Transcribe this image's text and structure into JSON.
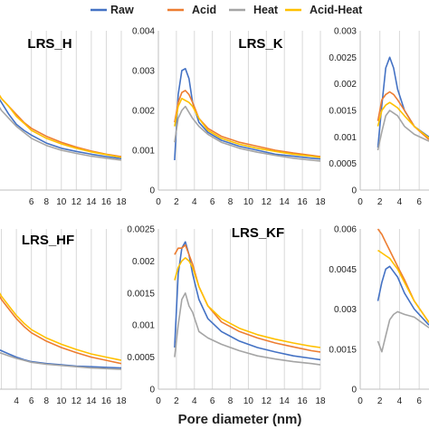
{
  "chart_data": [
    {
      "type": "line",
      "title": "LRS_H",
      "x": [
        0,
        1,
        2,
        3,
        4,
        5,
        6,
        8,
        10,
        12,
        14,
        16,
        18
      ],
      "xlim": [
        0,
        18
      ],
      "ylim": [
        0,
        0.004
      ],
      "x_ticks": [
        "6",
        "8",
        "10",
        "12",
        "14",
        "16",
        "18"
      ],
      "y_ticks": [],
      "grid": "vertical",
      "series": [
        {
          "name": "Raw",
          "color": "#4472C4",
          "values": [
            0.0028,
            0.0025,
            0.0022,
            0.0019,
            0.00165,
            0.0015,
            0.00138,
            0.00118,
            0.00105,
            0.00097,
            0.0009,
            0.00084,
            0.00079
          ]
        },
        {
          "name": "Acid",
          "color": "#ED7D31",
          "values": [
            0.0029,
            0.0026,
            0.0023,
            0.0021,
            0.0019,
            0.0017,
            0.00155,
            0.00135,
            0.0012,
            0.00108,
            0.00098,
            0.0009,
            0.00084
          ]
        },
        {
          "name": "Heat",
          "color": "#A5A5A5",
          "values": [
            0.0026,
            0.0023,
            0.002,
            0.0018,
            0.0016,
            0.00145,
            0.0013,
            0.00112,
            0.001,
            0.00092,
            0.00085,
            0.0008,
            0.00075
          ]
        },
        {
          "name": "Acid-Heat",
          "color": "#FFC000",
          "values": [
            0.0029,
            0.0026,
            0.0023,
            0.0021,
            0.00185,
            0.00168,
            0.0015,
            0.0013,
            0.00116,
            0.00105,
            0.00096,
            0.00089,
            0.00082
          ]
        }
      ]
    },
    {
      "type": "line",
      "title": "LRS_K",
      "x": [
        1.8,
        2.2,
        2.6,
        3.0,
        3.4,
        3.8,
        4.5,
        5.5,
        7,
        9,
        11,
        13,
        15,
        17,
        18
      ],
      "xlim": [
        0,
        18
      ],
      "ylim": [
        0,
        0.004
      ],
      "x_ticks": [
        "0",
        "2",
        "4",
        "6",
        "8",
        "10",
        "12",
        "14",
        "16",
        "18"
      ],
      "y_ticks": [
        "0",
        "0.001",
        "0.002",
        "0.003",
        "0.004"
      ],
      "grid": "vertical",
      "series": [
        {
          "name": "Raw",
          "color": "#4472C4",
          "values": [
            0.00075,
            0.0024,
            0.003,
            0.00305,
            0.0028,
            0.0022,
            0.0017,
            0.00145,
            0.00125,
            0.0011,
            0.001,
            0.0009,
            0.00085,
            0.0008,
            0.00078
          ]
        },
        {
          "name": "Acid",
          "color": "#ED7D31",
          "values": [
            0.0017,
            0.0022,
            0.00245,
            0.0025,
            0.0024,
            0.0022,
            0.0018,
            0.00155,
            0.00135,
            0.0012,
            0.0011,
            0.001,
            0.00093,
            0.00087,
            0.00084
          ]
        },
        {
          "name": "Heat",
          "color": "#A5A5A5",
          "values": [
            0.0012,
            0.0018,
            0.002,
            0.0021,
            0.00195,
            0.0018,
            0.0016,
            0.0014,
            0.0012,
            0.00105,
            0.00095,
            0.00087,
            0.0008,
            0.00075,
            0.00073
          ]
        },
        {
          "name": "Acid-Heat",
          "color": "#FFC000",
          "values": [
            0.0016,
            0.0021,
            0.0023,
            0.00225,
            0.0022,
            0.0021,
            0.0018,
            0.0015,
            0.0013,
            0.00115,
            0.00105,
            0.00097,
            0.0009,
            0.00085,
            0.00082
          ]
        }
      ]
    },
    {
      "type": "line",
      "title": "",
      "x": [
        1.8,
        2.2,
        2.6,
        3.0,
        3.4,
        3.8,
        4.5,
        5.5,
        7
      ],
      "xlim": [
        0,
        7
      ],
      "ylim": [
        0,
        0.003
      ],
      "x_ticks": [
        "0",
        "2",
        "4",
        "6"
      ],
      "y_ticks": [
        "0",
        "0.0005",
        "0.001",
        "0.0015",
        "0.002",
        "0.0025",
        "0.003"
      ],
      "grid": "vertical",
      "series": [
        {
          "name": "Raw",
          "color": "#4472C4",
          "values": [
            0.0008,
            0.0016,
            0.0023,
            0.0025,
            0.0023,
            0.0019,
            0.0015,
            0.0012,
            0.001
          ]
        },
        {
          "name": "Acid",
          "color": "#ED7D31",
          "values": [
            0.0013,
            0.0017,
            0.0018,
            0.00185,
            0.0018,
            0.0017,
            0.0015,
            0.0012,
            0.00095
          ]
        },
        {
          "name": "Heat",
          "color": "#A5A5A5",
          "values": [
            0.00075,
            0.0011,
            0.0014,
            0.0015,
            0.00145,
            0.0014,
            0.0012,
            0.00105,
            0.00092
          ]
        },
        {
          "name": "Acid-Heat",
          "color": "#FFC000",
          "values": [
            0.0012,
            0.0015,
            0.0016,
            0.00165,
            0.0016,
            0.00155,
            0.0014,
            0.0012,
            0.00098
          ]
        }
      ]
    },
    {
      "type": "line",
      "title": "LRS_HF",
      "x": [
        0,
        1,
        2,
        3,
        4,
        5,
        6,
        8,
        10,
        12,
        14,
        16,
        18
      ],
      "xlim": [
        0,
        18
      ],
      "ylim": [
        0,
        0.0025
      ],
      "x_ticks": [
        "2",
        "4",
        "6",
        "8",
        "10",
        "12",
        "14",
        "16",
        "18"
      ],
      "y_ticks": [],
      "grid": "vertical",
      "series": [
        {
          "name": "Raw",
          "color": "#4472C4",
          "values": [
            0.0007,
            0.00065,
            0.0006,
            0.00055,
            0.0005,
            0.00046,
            0.00043,
            0.0004,
            0.00038,
            0.00036,
            0.00035,
            0.00034,
            0.00033
          ]
        },
        {
          "name": "Acid",
          "color": "#ED7D31",
          "values": [
            0.0018,
            0.0016,
            0.0014,
            0.00125,
            0.0011,
            0.00098,
            0.00088,
            0.00075,
            0.00065,
            0.00057,
            0.0005,
            0.00045,
            0.0004
          ]
        },
        {
          "name": "Heat",
          "color": "#A5A5A5",
          "values": [
            0.00065,
            0.0006,
            0.00056,
            0.00052,
            0.00048,
            0.00045,
            0.00042,
            0.00039,
            0.00037,
            0.00035,
            0.00033,
            0.00032,
            0.00031
          ]
        },
        {
          "name": "Acid-Heat",
          "color": "#FFC000",
          "values": [
            0.0019,
            0.00165,
            0.00145,
            0.0013,
            0.00115,
            0.00103,
            0.00093,
            0.0008,
            0.0007,
            0.00062,
            0.00055,
            0.0005,
            0.00045
          ]
        }
      ]
    },
    {
      "type": "line",
      "title": "LRS_KF",
      "x": [
        1.8,
        2.2,
        2.6,
        3.0,
        3.4,
        3.8,
        4.5,
        5.5,
        7,
        9,
        11,
        13,
        15,
        17,
        18
      ],
      "xlim": [
        0,
        18
      ],
      "ylim": [
        0,
        0.0025
      ],
      "x_ticks": [
        "0",
        "2",
        "4",
        "6",
        "8",
        "10",
        "12",
        "14",
        "16",
        "18"
      ],
      "y_ticks": [
        "0",
        "0.0005",
        "0.001",
        "0.0015",
        "0.002",
        "0.0025"
      ],
      "grid": "vertical",
      "series": [
        {
          "name": "Raw",
          "color": "#4472C4",
          "values": [
            0.00065,
            0.0018,
            0.0022,
            0.0023,
            0.0021,
            0.0018,
            0.0014,
            0.0011,
            0.0009,
            0.00075,
            0.00065,
            0.00058,
            0.00052,
            0.00048,
            0.00046
          ]
        },
        {
          "name": "Acid",
          "color": "#ED7D31",
          "values": [
            0.0021,
            0.0022,
            0.0022,
            0.00225,
            0.0021,
            0.00195,
            0.0016,
            0.0013,
            0.00105,
            0.0009,
            0.0008,
            0.00072,
            0.00066,
            0.0006,
            0.00058
          ]
        },
        {
          "name": "Heat",
          "color": "#A5A5A5",
          "values": [
            0.0005,
            0.001,
            0.0014,
            0.0015,
            0.0013,
            0.0012,
            0.0009,
            0.0008,
            0.0007,
            0.0006,
            0.00052,
            0.00047,
            0.00043,
            0.0004,
            0.00038
          ]
        },
        {
          "name": "Acid-Heat",
          "color": "#FFC000",
          "values": [
            0.0017,
            0.0019,
            0.002,
            0.00205,
            0.002,
            0.0019,
            0.0016,
            0.0013,
            0.0011,
            0.00095,
            0.00085,
            0.00078,
            0.00072,
            0.00067,
            0.00065
          ]
        }
      ]
    },
    {
      "type": "line",
      "title": "",
      "x": [
        1.8,
        2.2,
        2.6,
        3.0,
        3.4,
        3.8,
        4.5,
        5.5,
        7
      ],
      "xlim": [
        0,
        7
      ],
      "ylim": [
        0,
        0.006
      ],
      "x_ticks": [
        "0",
        "2",
        "4",
        "6"
      ],
      "y_ticks": [
        "0",
        "0.0015",
        "0.003",
        "0.0045",
        "0.006"
      ],
      "grid": "vertical",
      "series": [
        {
          "name": "Raw",
          "color": "#4472C4",
          "values": [
            0.0033,
            0.004,
            0.0045,
            0.0046,
            0.0044,
            0.0042,
            0.0036,
            0.003,
            0.0024
          ]
        },
        {
          "name": "Acid",
          "color": "#ED7D31",
          "values": [
            0.006,
            0.0058,
            0.0055,
            0.0052,
            0.0049,
            0.0046,
            0.0041,
            0.0033,
            0.0025
          ]
        },
        {
          "name": "Heat",
          "color": "#A5A5A5",
          "values": [
            0.0018,
            0.0014,
            0.002,
            0.0026,
            0.0028,
            0.0029,
            0.0028,
            0.0027,
            0.0023
          ]
        },
        {
          "name": "Acid-Heat",
          "color": "#FFC000",
          "values": [
            0.0052,
            0.0051,
            0.005,
            0.0049,
            0.0047,
            0.0045,
            0.004,
            0.0033,
            0.0025
          ]
        }
      ]
    }
  ],
  "legend": [
    {
      "name": "Raw",
      "color": "#4472C4"
    },
    {
      "name": "Acid",
      "color": "#ED7D31"
    },
    {
      "name": "Heat",
      "color": "#A5A5A5"
    },
    {
      "name": "Acid-Heat",
      "color": "#FFC000"
    }
  ],
  "xlabel": "Pore diameter (nm)"
}
